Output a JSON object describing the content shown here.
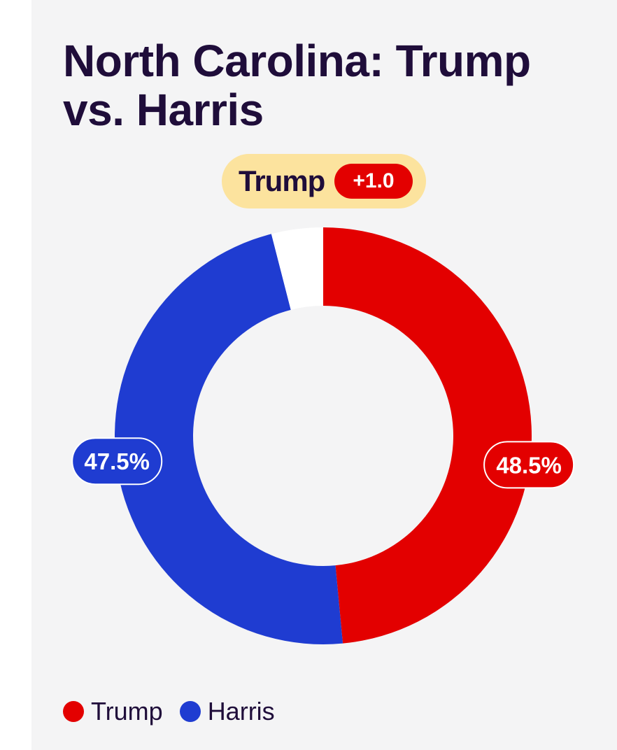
{
  "chart_data": {
    "type": "pie",
    "title": "North Carolina: Trump vs. Harris",
    "leader": {
      "name": "Trump",
      "margin": "+1.0"
    },
    "series": [
      {
        "name": "Trump",
        "value": 48.5,
        "label": "48.5%",
        "color": "#e30000"
      },
      {
        "name": "Harris",
        "value": 47.5,
        "label": "47.5%",
        "color": "#1f3cd1"
      }
    ],
    "remainder": {
      "value": 4.0,
      "color": "#ffffff"
    },
    "legend_position": "bottom-left"
  }
}
